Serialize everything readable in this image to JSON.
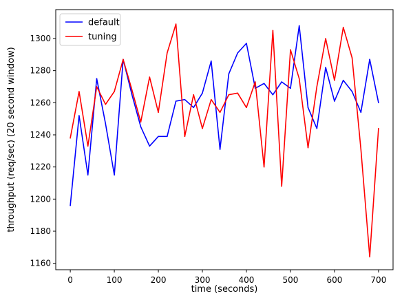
{
  "chart_data": {
    "type": "line",
    "title": "",
    "xlabel": "time (seconds)",
    "ylabel": "throughput (req/sec) (20 second window)",
    "xlim": [
      -33,
      733
    ],
    "ylim": [
      1156,
      1318
    ],
    "xticks": [
      0,
      100,
      200,
      300,
      400,
      500,
      600,
      700
    ],
    "yticks": [
      1160,
      1180,
      1200,
      1220,
      1240,
      1260,
      1280,
      1300
    ],
    "grid": false,
    "legend_position": "top-left",
    "x": [
      0,
      20,
      40,
      60,
      80,
      100,
      120,
      140,
      160,
      180,
      200,
      220,
      240,
      260,
      280,
      300,
      320,
      340,
      360,
      380,
      400,
      420,
      440,
      460,
      480,
      500,
      520,
      540,
      560,
      580,
      600,
      620,
      640,
      660,
      680,
      700
    ],
    "series": [
      {
        "name": "default",
        "color": "#0000ff",
        "values": [
          1196,
          1252,
          1215,
          1275,
          1247,
          1215,
          1287,
          1265,
          1245,
          1233,
          1239,
          1239,
          1261,
          1262,
          1257,
          1266,
          1286,
          1231,
          1278,
          1291,
          1297,
          1269,
          1272,
          1265,
          1273,
          1269,
          1308,
          1257,
          1244,
          1282,
          1261,
          1274,
          1267,
          1254,
          1287,
          1260
        ]
      },
      {
        "name": "tuning",
        "color": "#ff0000",
        "values": [
          1238,
          1267,
          1233,
          1270,
          1259,
          1267,
          1287,
          1268,
          1248,
          1276,
          1254,
          1291,
          1309,
          1239,
          1265,
          1244,
          1262,
          1254,
          1265,
          1266,
          1257,
          1273,
          1220,
          1305,
          1208,
          1293,
          1275,
          1232,
          1270,
          1300,
          1274,
          1307,
          1288,
          1231,
          1164,
          1244
        ]
      }
    ]
  }
}
